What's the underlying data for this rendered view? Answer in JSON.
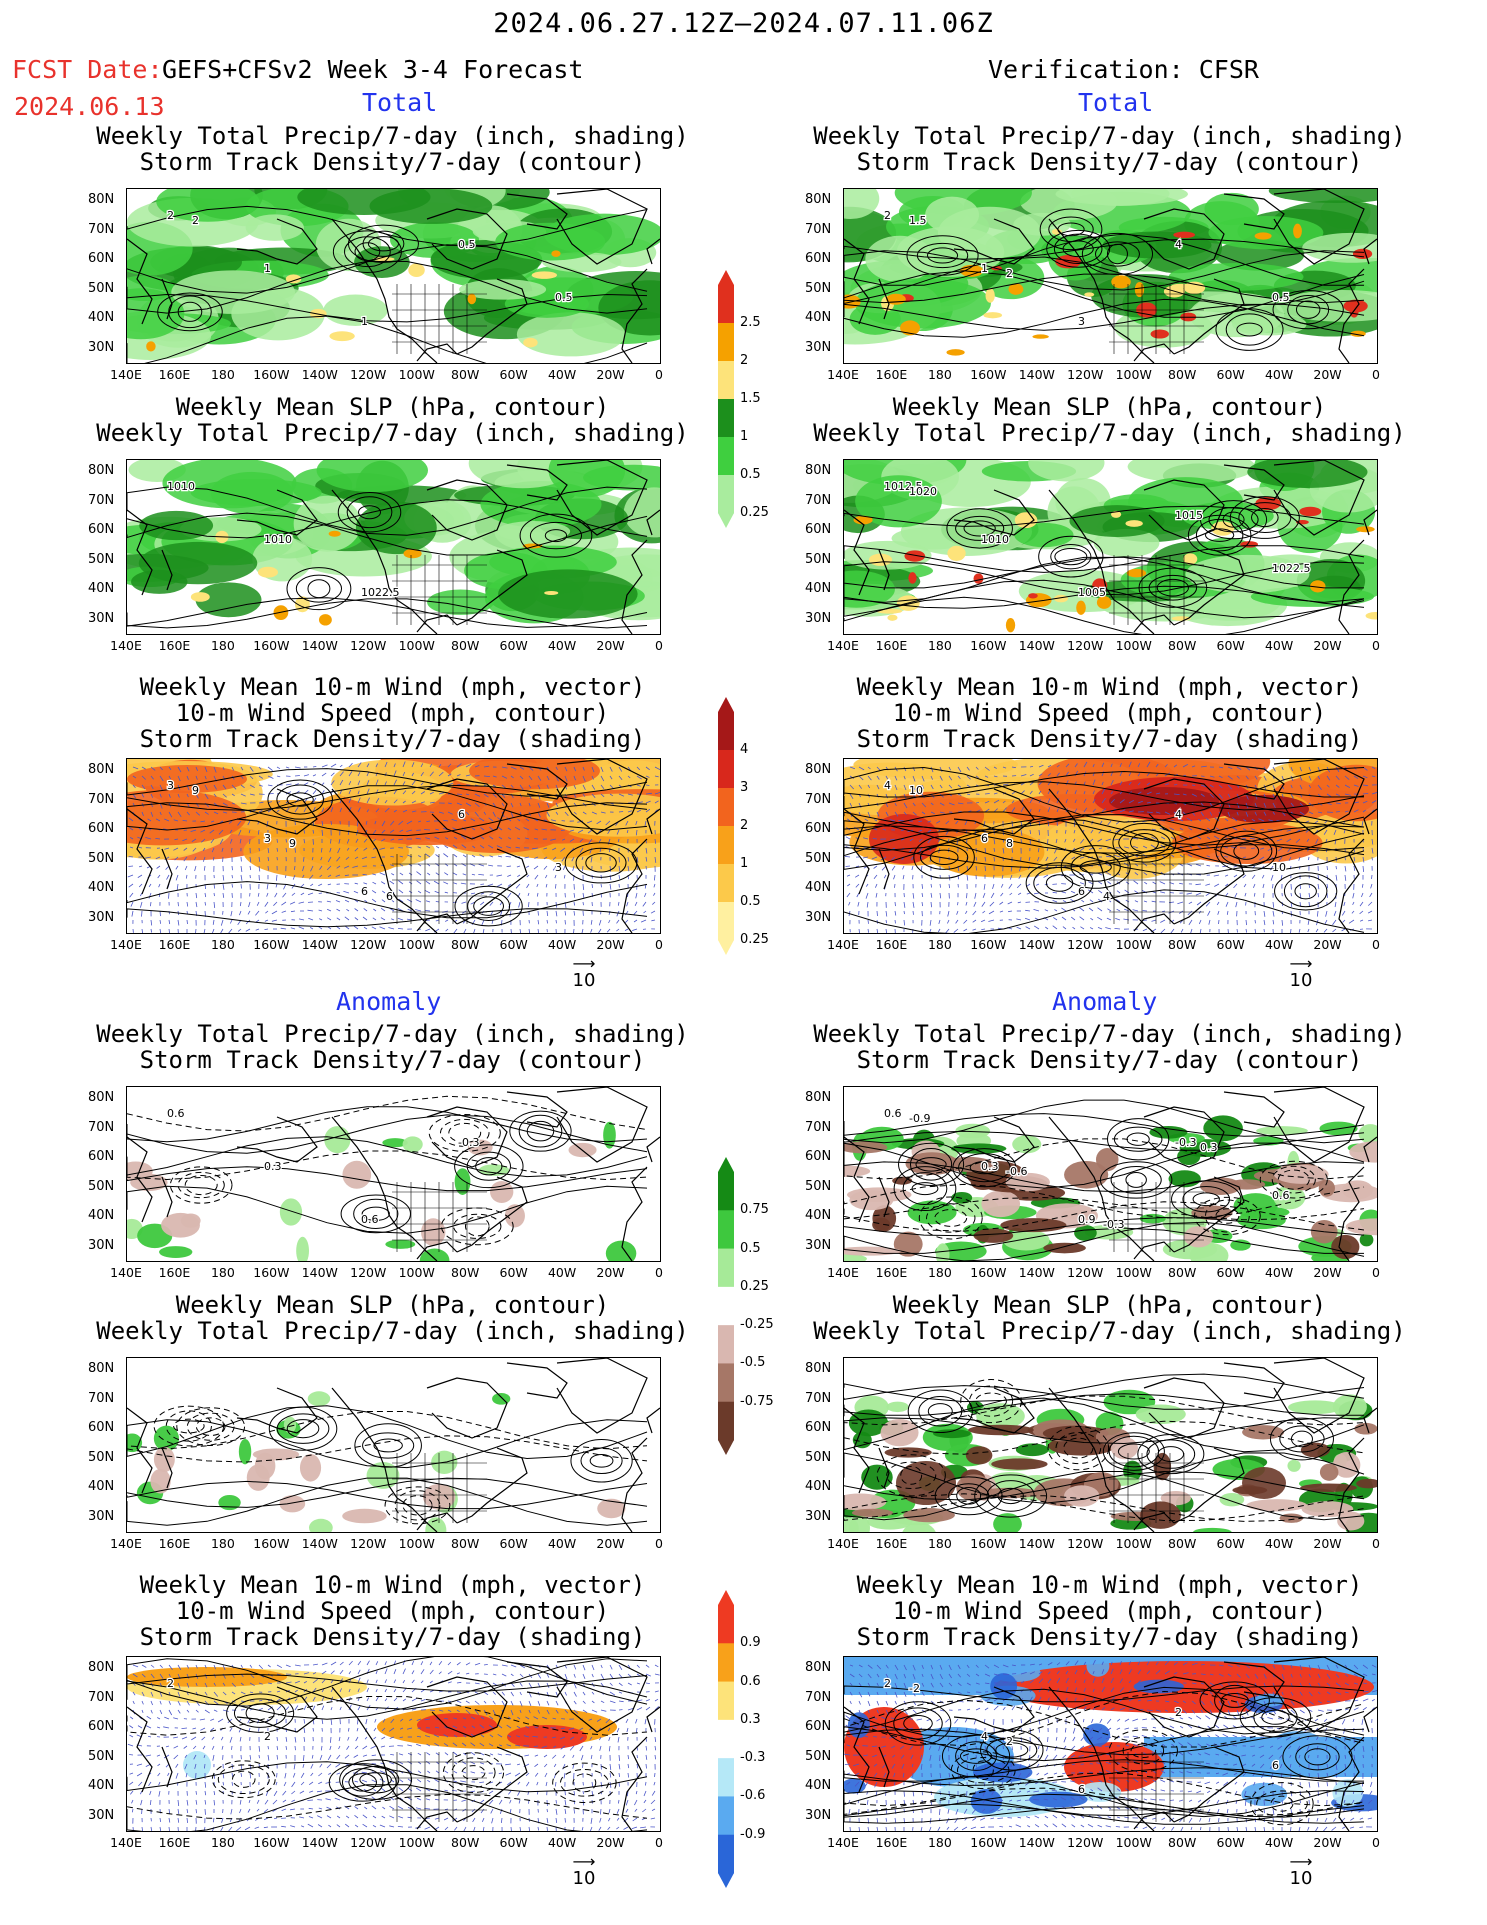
{
  "header": {
    "period": "2024.06.27.12Z–2024.07.11.06Z",
    "fcst_label": "FCST Date:",
    "fcst_model": "GEFS+CFSv2 Week 3-4 Forecast",
    "fcst_date": "2024.06.13",
    "verification": "Verification: CFSR",
    "section_total": "Total",
    "section_anomaly": "Anomaly"
  },
  "panel_titles": {
    "precip_storm": "Weekly Total Precip/7-day (inch, shading)\nStorm Track Density/7-day (contour)",
    "slp_precip": "Weekly Mean SLP (hPa, contour)\nWeekly Total Precip/7-day (inch, shading)",
    "wind_storm": "Weekly Mean 10-m Wind (mph, vector)\n10-m Wind Speed (mph, contour)\nStorm Track Density/7-day (shading)"
  },
  "axes": {
    "lat_labels": [
      "80N",
      "70N",
      "60N",
      "50N",
      "40N",
      "30N"
    ],
    "lon_labels": [
      "140E",
      "160E",
      "180",
      "160W",
      "140W",
      "120W",
      "100W",
      "80W",
      "60W",
      "40W",
      "20W",
      "0"
    ]
  },
  "vector_ref": "10",
  "colorbars": {
    "total_precip": {
      "labels": [
        "2.5",
        "2",
        "1.5",
        "1",
        "0.5",
        "0.25"
      ],
      "colors": [
        "#e0301e",
        "#f5a100",
        "#fde37a",
        "#1c8f1c",
        "#3fcf3f",
        "#a9ec9e"
      ]
    },
    "total_storm": {
      "labels": [
        "4",
        "3",
        "2",
        "1",
        "0.5",
        "0.25"
      ],
      "colors": [
        "#a51818",
        "#d8281c",
        "#f2641e",
        "#f8a11a",
        "#fcc94a",
        "#fff0a0"
      ]
    },
    "anom_precip": {
      "labels": [
        "0.75",
        "0.5",
        "0.25",
        "-0.25",
        "-0.5",
        "-0.75"
      ],
      "colors": [
        "#158a15",
        "#3ec83e",
        "#a6ea98",
        "#ffffff",
        "#d9b7b0",
        "#a67767",
        "#6b3a2a"
      ]
    },
    "anom_storm": {
      "labels": [
        "0.9",
        "0.6",
        "0.3",
        "-0.3",
        "-0.6",
        "-0.9"
      ],
      "colors": [
        "#ee3a22",
        "#f8a11a",
        "#fde37a",
        "#ffffff",
        "#b5e8f7",
        "#5aaaf0",
        "#2a66d8"
      ]
    }
  },
  "contour_labels": {
    "l_total_precip": [
      "2",
      "1",
      "1",
      "0.5",
      "0.5",
      "2"
    ],
    "r_total_precip": [
      "2",
      "1",
      "3",
      "4",
      "0.5",
      "1.5",
      "2"
    ],
    "l_total_slp": [
      "1010",
      "1010",
      "1022.5"
    ],
    "r_total_slp": [
      "1012.5",
      "1010",
      "1005",
      "1015",
      "1022.5",
      "1020"
    ],
    "l_total_wind": [
      "3",
      "3",
      "6",
      "6",
      "3",
      "9",
      "9",
      "6"
    ],
    "r_total_wind": [
      "4",
      "6",
      "6",
      "4",
      "10",
      "10",
      "8",
      "4"
    ],
    "l_anom_precip": [
      "0.6",
      "0.3",
      "0.6",
      "-0.3"
    ],
    "r_anom_precip": [
      "0.6",
      "0.3",
      "0.9",
      "-0.3",
      "0.6",
      "-0.9",
      "-0.6",
      "-0.3",
      "0.3"
    ],
    "l_anom_wind": [
      "2",
      "2"
    ],
    "r_anom_wind": [
      "2",
      "4",
      "6",
      "2",
      "6",
      "-2",
      "2"
    ]
  }
}
